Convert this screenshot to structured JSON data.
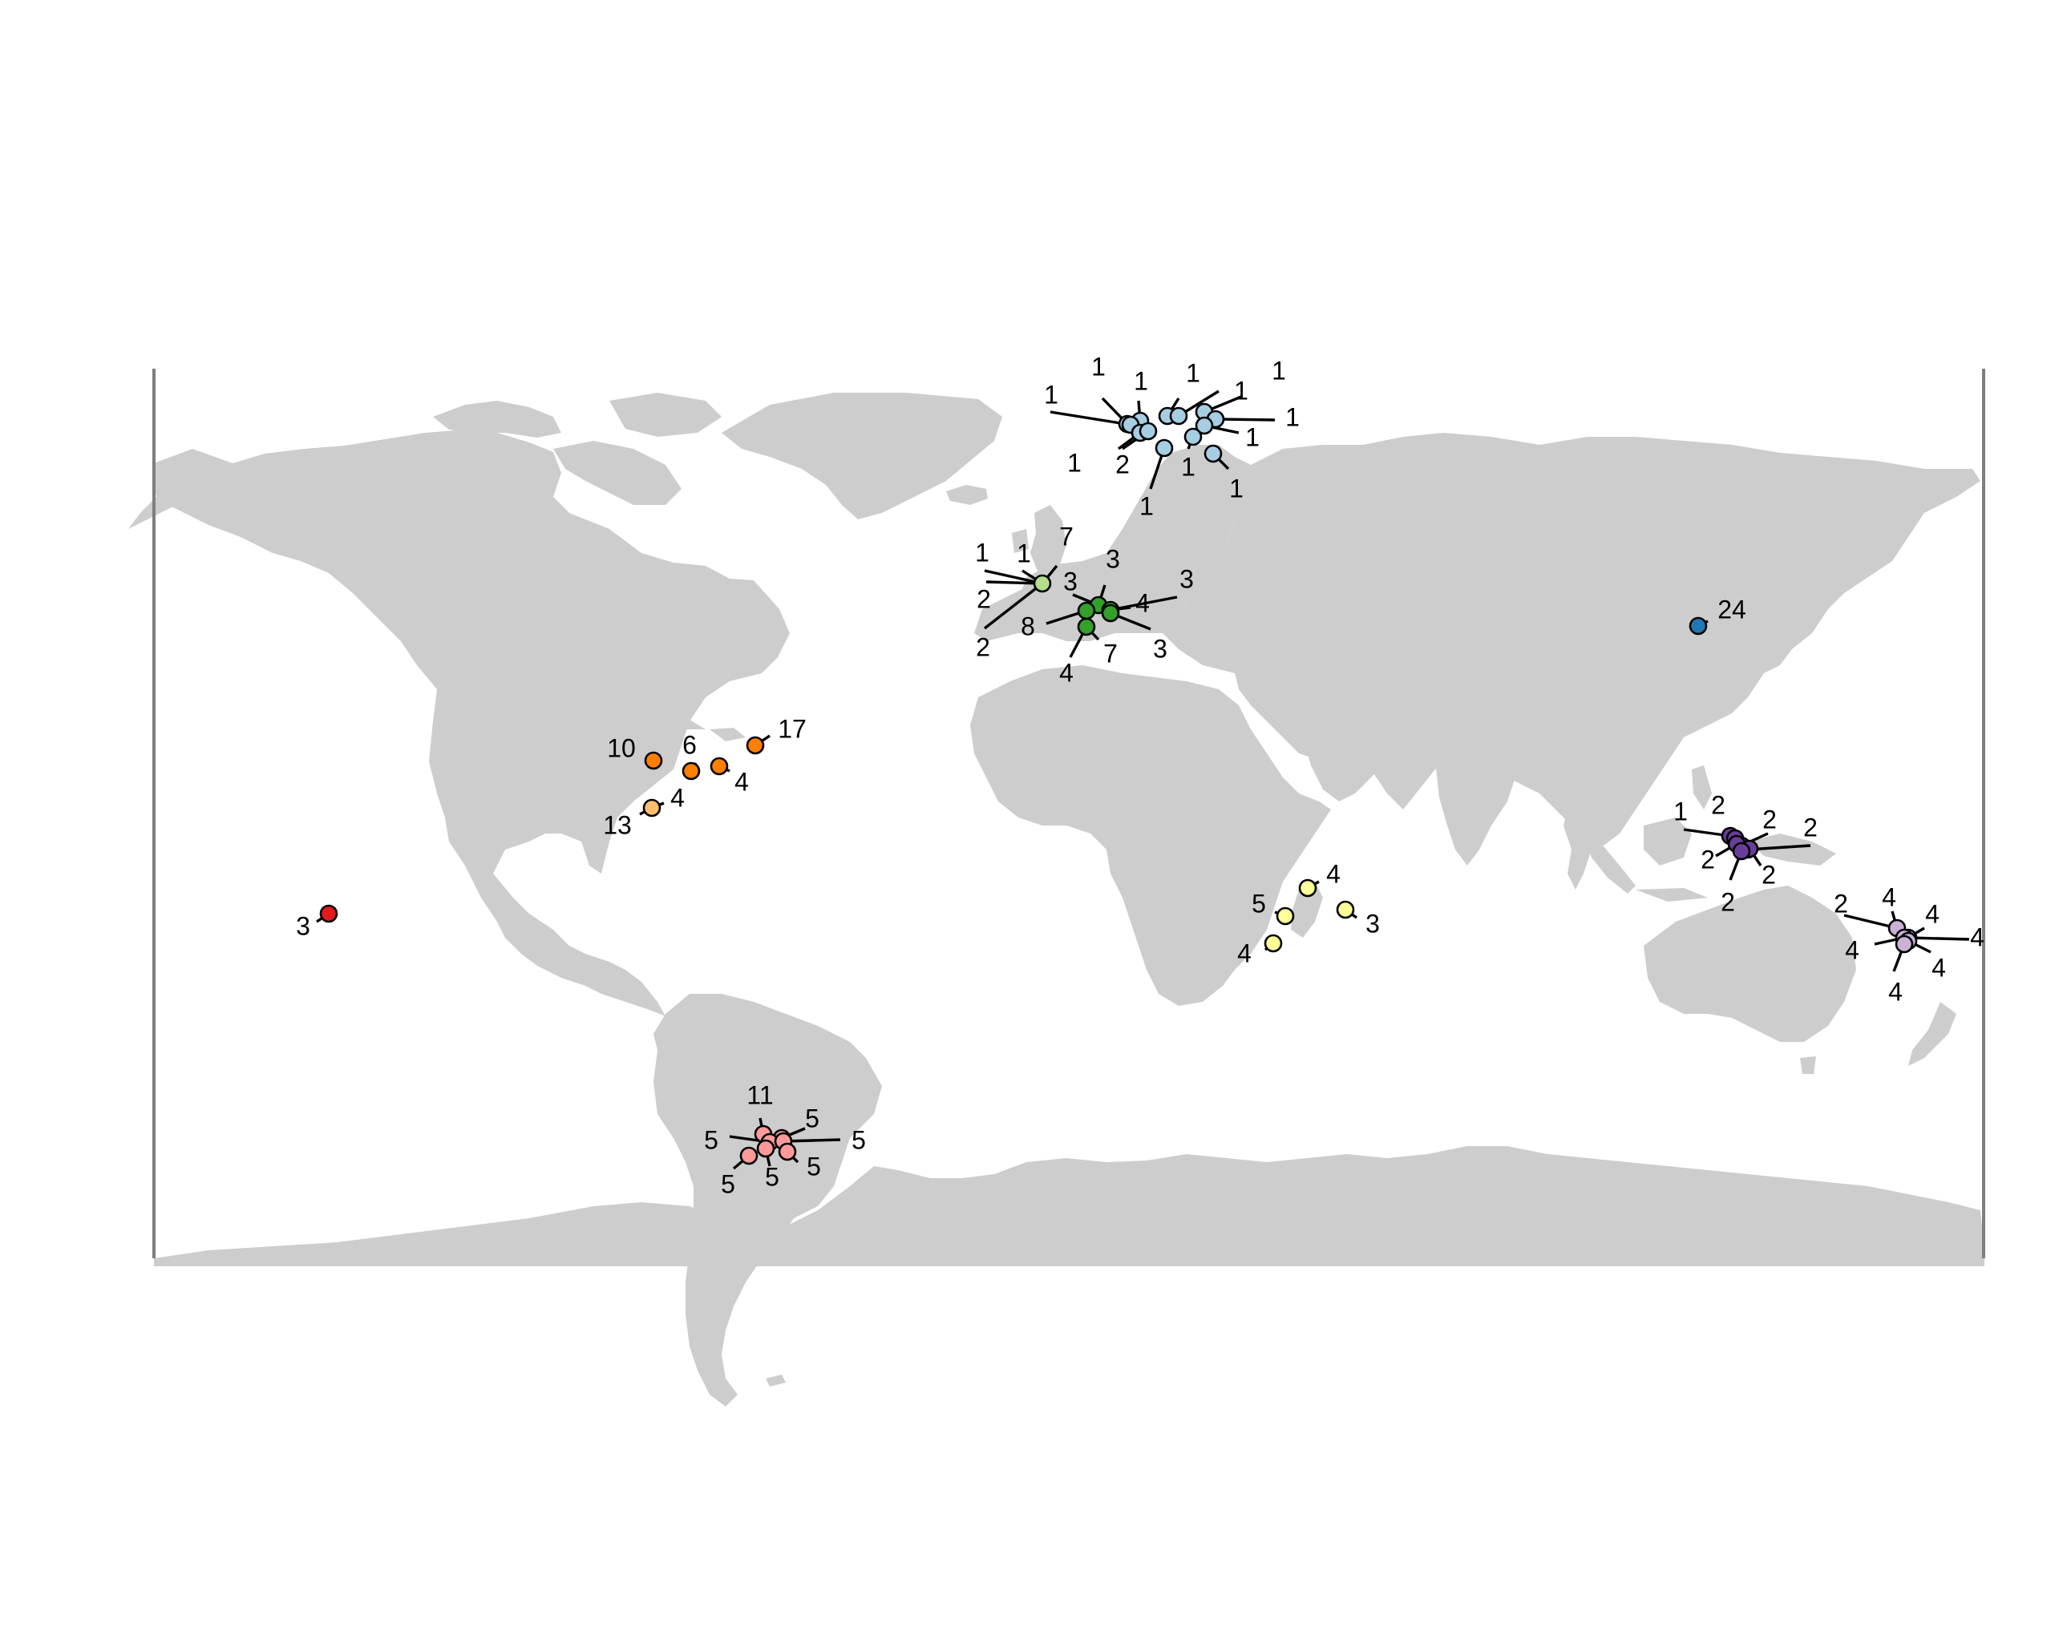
{
  "map": {
    "type": "world-map-point-clusters",
    "projection": "equirectangular",
    "land_color": "#cdcdcd",
    "frame_color": "#7f7f7f",
    "leader_color": "#000000",
    "groups": [
      {
        "id": "pacific",
        "color": "#e31a1c",
        "points": [
          {
            "label": "3"
          }
        ]
      },
      {
        "id": "central-america",
        "color": "#ff7f00",
        "points": [
          {
            "label": "10"
          },
          {
            "label": "6"
          },
          {
            "label": "4"
          },
          {
            "label": "17"
          }
        ]
      },
      {
        "id": "colombia",
        "color": "#fdbf6f",
        "points": [
          {
            "label": "13"
          },
          {
            "label": "4"
          }
        ]
      },
      {
        "id": "patagonia",
        "color": "#fb9a99",
        "points": [
          {
            "label": "11"
          },
          {
            "label": "5"
          },
          {
            "label": "5"
          },
          {
            "label": "5"
          },
          {
            "label": "5"
          },
          {
            "label": "5"
          },
          {
            "label": "5"
          }
        ]
      },
      {
        "id": "scandinavia",
        "color": "#a6cee3",
        "points": [
          {
            "label": "1"
          },
          {
            "label": "1"
          },
          {
            "label": "1"
          },
          {
            "label": "1"
          },
          {
            "label": "1"
          },
          {
            "label": "2"
          },
          {
            "label": "1"
          },
          {
            "label": "1"
          },
          {
            "label": "1"
          },
          {
            "label": "1"
          },
          {
            "label": "1"
          },
          {
            "label": "1"
          },
          {
            "label": "1"
          }
        ]
      },
      {
        "id": "western-europe",
        "color": "#b2df8a",
        "points": [
          {
            "label": "1"
          },
          {
            "label": "1"
          },
          {
            "label": "7"
          },
          {
            "label": "2"
          },
          {
            "label": "2"
          }
        ]
      },
      {
        "id": "southern-europe",
        "color": "#33a02c",
        "points": [
          {
            "label": "3"
          },
          {
            "label": "3"
          },
          {
            "label": "3"
          },
          {
            "label": "4"
          },
          {
            "label": "8"
          },
          {
            "label": "7"
          },
          {
            "label": "3"
          },
          {
            "label": "4"
          }
        ]
      },
      {
        "id": "east-asia",
        "color": "#1f78b4",
        "points": [
          {
            "label": "24"
          }
        ]
      },
      {
        "id": "madagascar",
        "color": "#ffff99",
        "points": [
          {
            "label": "4"
          },
          {
            "label": "5"
          },
          {
            "label": "3"
          },
          {
            "label": "4"
          }
        ]
      },
      {
        "id": "new-guinea",
        "color": "#6a3d9a",
        "points": [
          {
            "label": "1"
          },
          {
            "label": "2"
          },
          {
            "label": "2"
          },
          {
            "label": "2"
          },
          {
            "label": "2"
          },
          {
            "label": "2"
          },
          {
            "label": "2"
          }
        ]
      },
      {
        "id": "melanesia",
        "color": "#cab2d6",
        "points": [
          {
            "label": "2"
          },
          {
            "label": "4"
          },
          {
            "label": "4"
          },
          {
            "label": "4"
          },
          {
            "label": "4"
          },
          {
            "label": "4"
          },
          {
            "label": "4"
          }
        ]
      }
    ]
  }
}
